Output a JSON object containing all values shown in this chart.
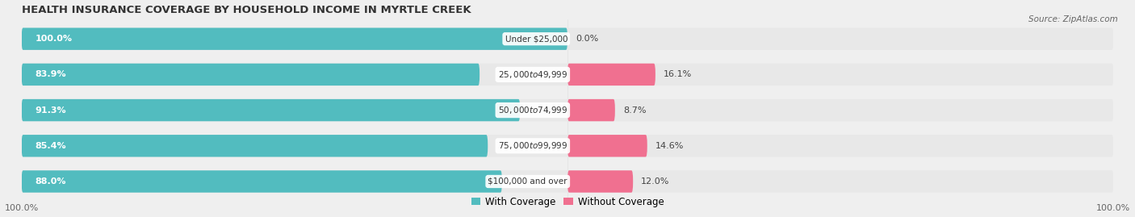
{
  "title": "HEALTH INSURANCE COVERAGE BY HOUSEHOLD INCOME IN MYRTLE CREEK",
  "source": "Source: ZipAtlas.com",
  "categories": [
    "Under $25,000",
    "$25,000 to $49,999",
    "$50,000 to $74,999",
    "$75,000 to $99,999",
    "$100,000 and over"
  ],
  "with_coverage": [
    100.0,
    83.9,
    91.3,
    85.4,
    88.0
  ],
  "without_coverage": [
    0.0,
    16.1,
    8.7,
    14.6,
    12.0
  ],
  "color_with": "#52bcbf",
  "color_without": "#f07090",
  "color_with_light": "#a8dfe0",
  "color_without_light": "#f8b8c8",
  "background_color": "#efefef",
  "bar_background": "#e8e8e8",
  "title_fontsize": 9.5,
  "label_fontsize": 8.0,
  "tick_fontsize": 8.0,
  "legend_fontsize": 8.5,
  "total": 100.0,
  "split_point": 0.57
}
